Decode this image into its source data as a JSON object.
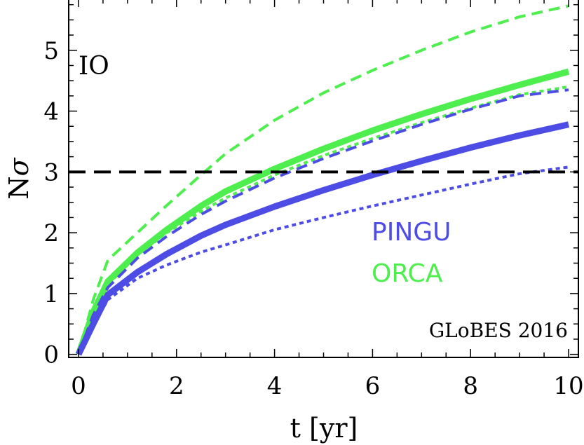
{
  "chart_data": {
    "type": "line",
    "annotation_label": "IO",
    "credit": "GLoBES 2016",
    "xlabel": "t [yr]",
    "ylabel_main": "N",
    "ylabel_symbol": "σ",
    "xlim": [
      -0.2,
      10.2
    ],
    "ylim": [
      -0.05,
      5.85
    ],
    "xticks": [
      0,
      2,
      4,
      6,
      8,
      10
    ],
    "yticks": [
      0,
      1,
      2,
      3,
      4,
      5
    ],
    "threshold": {
      "value": 3,
      "color": "#000000"
    },
    "legend": [
      {
        "label": "PINGU",
        "color": "#4d4de6"
      },
      {
        "label": "ORCA",
        "color": "#4dee4d"
      }
    ],
    "series": [
      {
        "name": "ORCA dashed",
        "color": "#4dee4d",
        "style": "dashed",
        "x": [
          0,
          0.3,
          0.6,
          1.2,
          1.8,
          2.5,
          3,
          4,
          5,
          6,
          7,
          8,
          9,
          10
        ],
        "y": [
          0,
          0.9,
          1.55,
          2.0,
          2.45,
          2.95,
          3.3,
          3.85,
          4.3,
          4.67,
          5.0,
          5.3,
          5.55,
          5.73
        ]
      },
      {
        "name": "ORCA solid",
        "color": "#4dee4d",
        "style": "solid",
        "x": [
          0,
          0.3,
          0.6,
          1.2,
          1.8,
          2.5,
          3,
          4,
          5,
          6,
          7,
          8,
          9,
          10
        ],
        "y": [
          0,
          0.7,
          1.2,
          1.67,
          2.05,
          2.44,
          2.68,
          3.05,
          3.38,
          3.68,
          3.95,
          4.2,
          4.43,
          4.65
        ]
      },
      {
        "name": "ORCA dotted",
        "color": "#4dee4d",
        "style": "dotted",
        "x": [
          0,
          0.3,
          0.6,
          1.2,
          1.8,
          2.5,
          3,
          4,
          5,
          6,
          7,
          8,
          9,
          10
        ],
        "y": [
          0,
          0.68,
          1.15,
          1.63,
          2.0,
          2.35,
          2.57,
          2.95,
          3.27,
          3.55,
          3.81,
          4.05,
          4.27,
          4.4
        ]
      },
      {
        "name": "PINGU dashed",
        "color": "#4d4de6",
        "style": "dashed",
        "x": [
          0,
          0.3,
          0.6,
          1.2,
          1.8,
          2.5,
          3,
          4,
          5,
          6,
          7,
          8,
          9,
          10
        ],
        "y": [
          0,
          0.65,
          1.1,
          1.58,
          1.94,
          2.3,
          2.52,
          2.9,
          3.22,
          3.51,
          3.78,
          4.03,
          4.25,
          4.35
        ]
      },
      {
        "name": "PINGU solid",
        "color": "#4d4de6",
        "style": "solid",
        "x": [
          0,
          0.3,
          0.6,
          1.2,
          1.8,
          2.5,
          3,
          4,
          5,
          6,
          7,
          8,
          9,
          10
        ],
        "y": [
          0,
          0.5,
          0.98,
          1.35,
          1.65,
          1.95,
          2.13,
          2.43,
          2.7,
          2.95,
          3.18,
          3.4,
          3.6,
          3.78
        ]
      },
      {
        "name": "PINGU dotted",
        "color": "#4d4de6",
        "style": "dotted",
        "x": [
          0,
          0.3,
          0.6,
          1.2,
          1.8,
          2.5,
          3,
          4,
          5,
          6,
          7,
          8,
          9,
          10
        ],
        "y": [
          0,
          0.48,
          0.9,
          1.25,
          1.47,
          1.68,
          1.8,
          2.05,
          2.25,
          2.44,
          2.62,
          2.8,
          2.97,
          3.08
        ]
      }
    ]
  }
}
